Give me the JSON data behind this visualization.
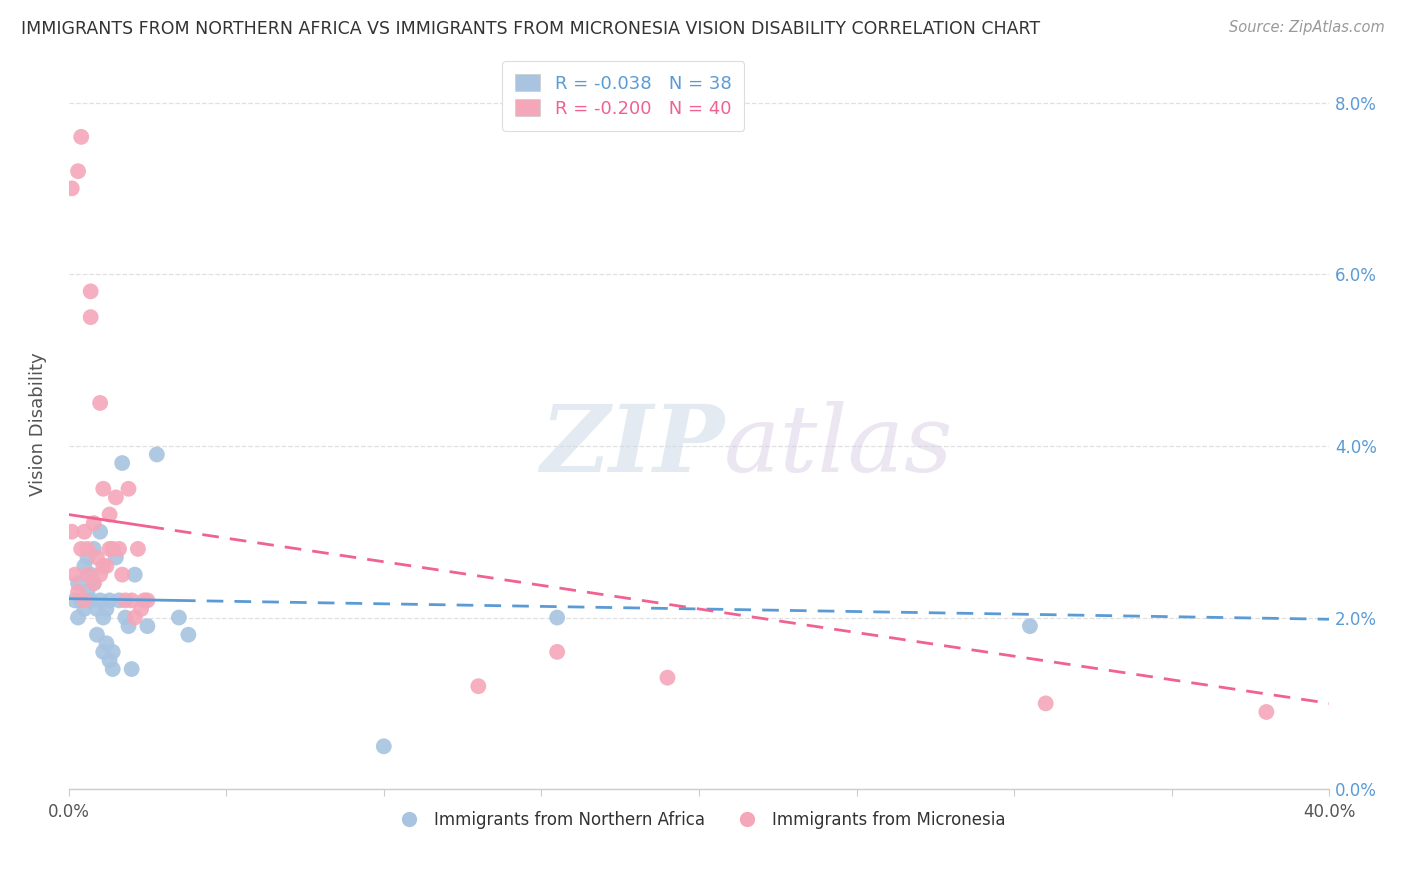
{
  "title": "IMMIGRANTS FROM NORTHERN AFRICA VS IMMIGRANTS FROM MICRONESIA VISION DISABILITY CORRELATION CHART",
  "source": "Source: ZipAtlas.com",
  "ylabel": "Vision Disability",
  "xlim": [
    0.0,
    0.4
  ],
  "ylim": [
    0.0,
    0.085
  ],
  "xtick_positions": [
    0.0,
    0.05,
    0.1,
    0.15,
    0.2,
    0.25,
    0.3,
    0.35,
    0.4
  ],
  "xtick_labels": [
    "0.0%",
    "",
    "",
    "",
    "",
    "",
    "",
    "",
    "40.0%"
  ],
  "ytick_positions": [
    0.0,
    0.02,
    0.04,
    0.06,
    0.08
  ],
  "ytick_labels_right": [
    "0.0%",
    "2.0%",
    "4.0%",
    "6.0%",
    "8.0%"
  ],
  "blue_R": "-0.038",
  "blue_N": "38",
  "pink_R": "-0.200",
  "pink_N": "40",
  "blue_color": "#a8c4e0",
  "pink_color": "#f4a7b9",
  "blue_line_color": "#5b9bd5",
  "pink_line_color": "#f06292",
  "legend_label_blue": "Immigrants from Northern Africa",
  "legend_label_pink": "Immigrants from Micronesia",
  "blue_line_x0": 0.0,
  "blue_line_x1": 0.4,
  "blue_line_y0": 0.0222,
  "blue_line_y1": 0.0198,
  "blue_line_solid_end": 0.035,
  "pink_line_x0": 0.0,
  "pink_line_x1": 0.4,
  "pink_line_y0": 0.032,
  "pink_line_y1": 0.01,
  "pink_line_solid_end": 0.025,
  "blue_scatter_x": [
    0.002,
    0.003,
    0.003,
    0.004,
    0.005,
    0.005,
    0.006,
    0.006,
    0.007,
    0.007,
    0.008,
    0.008,
    0.009,
    0.009,
    0.01,
    0.01,
    0.011,
    0.011,
    0.012,
    0.012,
    0.013,
    0.013,
    0.014,
    0.014,
    0.015,
    0.016,
    0.017,
    0.018,
    0.019,
    0.02,
    0.021,
    0.025,
    0.028,
    0.035,
    0.1,
    0.155,
    0.305,
    0.038
  ],
  "blue_scatter_y": [
    0.022,
    0.02,
    0.024,
    0.022,
    0.021,
    0.026,
    0.023,
    0.027,
    0.022,
    0.025,
    0.024,
    0.028,
    0.021,
    0.018,
    0.022,
    0.03,
    0.016,
    0.02,
    0.017,
    0.021,
    0.015,
    0.022,
    0.016,
    0.014,
    0.027,
    0.022,
    0.038,
    0.02,
    0.019,
    0.014,
    0.025,
    0.019,
    0.039,
    0.02,
    0.005,
    0.02,
    0.019,
    0.018
  ],
  "pink_scatter_x": [
    0.001,
    0.001,
    0.002,
    0.003,
    0.003,
    0.004,
    0.004,
    0.005,
    0.005,
    0.006,
    0.006,
    0.007,
    0.007,
    0.008,
    0.008,
    0.009,
    0.01,
    0.01,
    0.011,
    0.011,
    0.012,
    0.013,
    0.013,
    0.014,
    0.015,
    0.016,
    0.017,
    0.018,
    0.019,
    0.02,
    0.021,
    0.022,
    0.023,
    0.024,
    0.025,
    0.13,
    0.155,
    0.19,
    0.31,
    0.38
  ],
  "pink_scatter_y": [
    0.03,
    0.07,
    0.025,
    0.072,
    0.023,
    0.028,
    0.076,
    0.022,
    0.03,
    0.025,
    0.028,
    0.055,
    0.058,
    0.024,
    0.031,
    0.027,
    0.025,
    0.045,
    0.026,
    0.035,
    0.026,
    0.028,
    0.032,
    0.028,
    0.034,
    0.028,
    0.025,
    0.022,
    0.035,
    0.022,
    0.02,
    0.028,
    0.021,
    0.022,
    0.022,
    0.012,
    0.016,
    0.013,
    0.01,
    0.009
  ],
  "watermark_zip": "ZIP",
  "watermark_atlas": "atlas",
  "background_color": "#ffffff",
  "grid_color": "#e0e0e0"
}
